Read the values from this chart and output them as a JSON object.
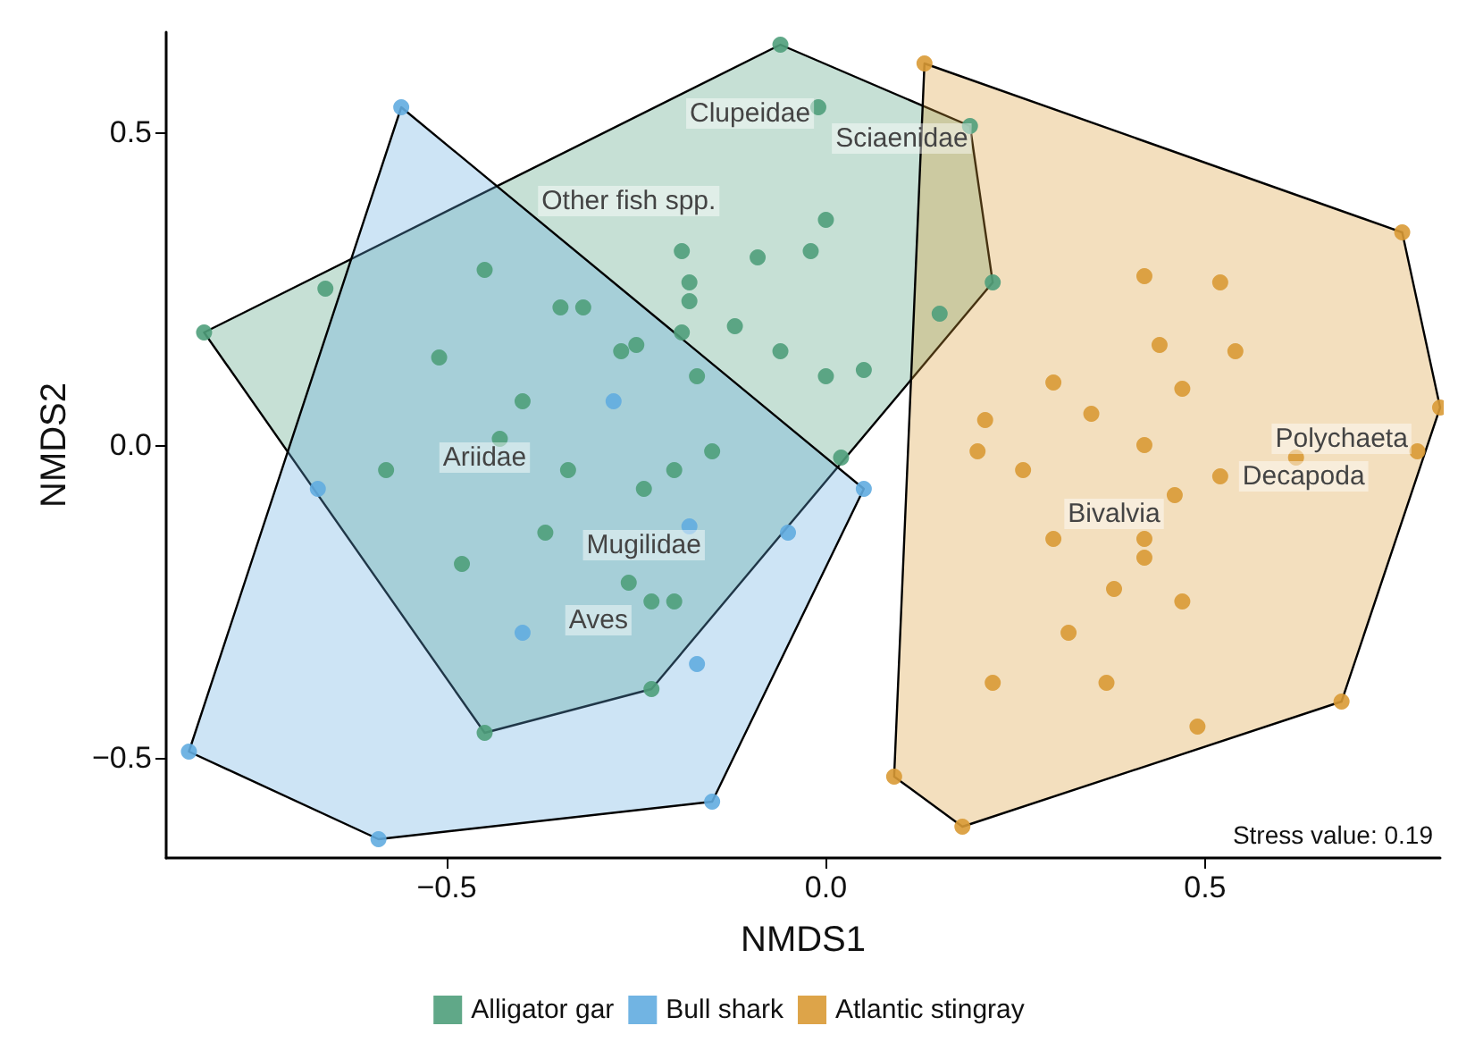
{
  "chart_data": {
    "type": "scatter",
    "xlabel": "NMDS1",
    "ylabel": "NMDS2",
    "xlim": [
      -0.87,
      0.81
    ],
    "ylim": [
      -0.66,
      0.66
    ],
    "xticks": [
      {
        "value": -0.5,
        "label": "−0.5"
      },
      {
        "value": 0,
        "label": "0.0"
      },
      {
        "value": 0.5,
        "label": "0.5"
      }
    ],
    "yticks": [
      {
        "value": -0.5,
        "label": "−0.5"
      },
      {
        "value": 0,
        "label": "0.0"
      },
      {
        "value": 0.5,
        "label": "0.5"
      }
    ],
    "grid": false,
    "legend": "bottom",
    "marker": "circle",
    "series": [
      {
        "name": "Alligator gar",
        "color": "#4f9e7b",
        "x": [
          -0.06,
          -0.01,
          0.19,
          -0.19,
          -0.09,
          -0.02,
          0.0,
          -0.66,
          -0.82,
          -0.45,
          -0.35,
          -0.32,
          -0.18,
          -0.18,
          -0.12,
          -0.06,
          0.0,
          0.05,
          -0.27,
          -0.25,
          -0.19,
          -0.17,
          -0.51,
          0.22,
          0.15,
          -0.4,
          -0.43,
          -0.58,
          -0.34,
          -0.2,
          -0.24,
          -0.15,
          0.02,
          -0.37,
          -0.48,
          -0.26,
          -0.23,
          -0.2,
          -0.23,
          -0.45
        ],
        "values": [
          0.64,
          0.54,
          0.51,
          0.31,
          0.3,
          0.31,
          0.36,
          0.25,
          0.18,
          0.28,
          0.22,
          0.22,
          0.26,
          0.23,
          0.19,
          0.15,
          0.11,
          0.12,
          0.15,
          0.16,
          0.18,
          0.11,
          0.14,
          0.26,
          0.21,
          0.07,
          0.01,
          -0.04,
          -0.04,
          -0.04,
          -0.07,
          -0.01,
          -0.02,
          -0.14,
          -0.19,
          -0.22,
          -0.25,
          -0.25,
          -0.39,
          -0.46
        ]
      },
      {
        "name": "Bull shark",
        "color": "#62ace0",
        "x": [
          -0.56,
          -0.67,
          -0.28,
          -0.18,
          -0.05,
          0.05,
          -0.4,
          -0.17,
          -0.84,
          -0.59,
          -0.15
        ],
        "values": [
          0.54,
          -0.07,
          0.07,
          -0.13,
          -0.14,
          -0.07,
          -0.3,
          -0.35,
          -0.49,
          -0.63,
          -0.57
        ]
      },
      {
        "name": "Atlantic stingray",
        "color": "#d99a35",
        "x": [
          0.13,
          0.76,
          0.81,
          0.42,
          0.52,
          0.44,
          0.54,
          0.3,
          0.47,
          0.21,
          0.35,
          0.2,
          0.42,
          0.26,
          0.62,
          0.78,
          0.52,
          0.46,
          0.3,
          0.42,
          0.42,
          0.38,
          0.47,
          0.32,
          0.22,
          0.37,
          0.49,
          0.68,
          0.09,
          0.18
        ],
        "values": [
          0.61,
          0.34,
          0.06,
          0.27,
          0.26,
          0.16,
          0.15,
          0.1,
          0.09,
          0.04,
          0.05,
          -0.01,
          0.0,
          -0.04,
          -0.02,
          -0.01,
          -0.05,
          -0.08,
          -0.15,
          -0.15,
          -0.18,
          -0.23,
          -0.25,
          -0.3,
          -0.38,
          -0.38,
          -0.45,
          -0.41,
          -0.53,
          -0.61
        ]
      }
    ],
    "annotations": [
      "Clupeidae",
      "Sciaenidae",
      "Other fish spp.",
      "Ariidae",
      "Mugilidae",
      "Aves",
      "Bivalvia",
      "Polychaeta",
      "Decapoda",
      "Stress value: 0.19"
    ]
  }
}
